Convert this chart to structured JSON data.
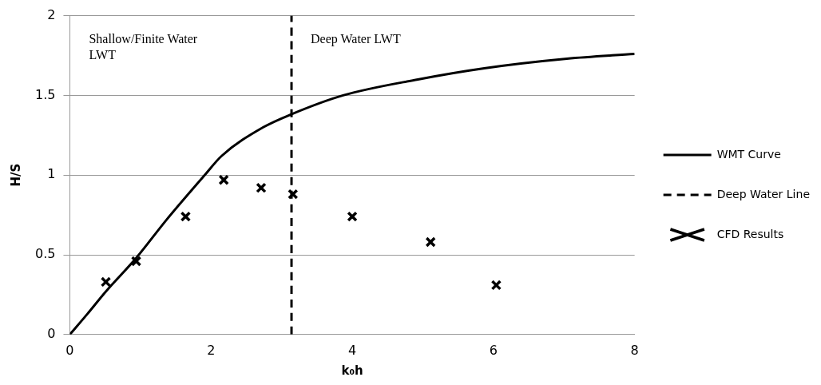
{
  "chart_data": {
    "type": "line",
    "xlabel": "k₀h",
    "ylabel": "H/S",
    "annotations": [
      "Shallow/Finite Water LWT",
      "Deep Water LWT"
    ],
    "series": [
      {
        "name": "WMT Curve",
        "color": "#000000",
        "marker": "none",
        "line_style": "solid",
        "x": [
          0,
          0.25,
          0.51,
          0.94,
          1.37,
          1.91,
          2.15,
          2.74,
          3.13,
          3.87,
          4.93,
          5.87,
          7.04,
          8
        ],
        "values": [
          0,
          0.13,
          0.27,
          0.48,
          0.72,
          1.0,
          1.12,
          1.3,
          1.38,
          1.5,
          1.6,
          1.67,
          1.73,
          1.76
        ]
      },
      {
        "name": "Deep Water Line",
        "color": "#000000",
        "marker": "none",
        "line_style": "dashed",
        "x": [
          3.14,
          3.14
        ],
        "values": [
          0,
          2
        ]
      },
      {
        "name": "CFD Results",
        "type": "scatter",
        "color": "#000000",
        "marker": "cross",
        "x": [
          0.51,
          0.94,
          1.64,
          2.18,
          2.71,
          3.16,
          4.0,
          5.11,
          6.04
        ],
        "values": [
          0.33,
          0.46,
          0.74,
          0.97,
          0.92,
          0.88,
          0.74,
          0.58,
          0.31
        ]
      }
    ],
    "xlim": [
      0,
      8
    ],
    "xticks": [
      0,
      2,
      4,
      6,
      8
    ],
    "ylim": [
      0,
      2
    ],
    "yticks": [
      0,
      0.5,
      1,
      1.5,
      2
    ],
    "grid": "y",
    "legend": "right"
  }
}
